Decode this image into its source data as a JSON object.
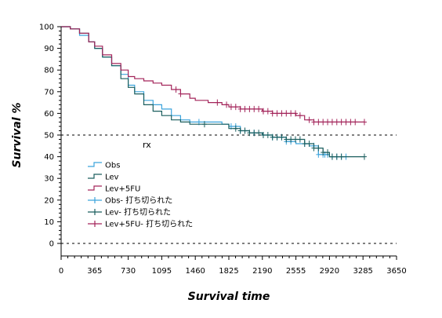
{
  "chart_data": {
    "type": "line",
    "xlabel": "Survival time",
    "ylabel": "Survival %",
    "xlim": [
      0,
      3650
    ],
    "ylim": [
      0,
      100
    ],
    "x_ticks": [
      0,
      365,
      730,
      1095,
      1460,
      1825,
      2190,
      2555,
      2920,
      3285,
      3650
    ],
    "y_ticks": [
      0,
      10,
      20,
      30,
      40,
      50,
      60,
      70,
      80,
      90,
      100
    ],
    "reference_lines": [
      50,
      0
    ],
    "legend": {
      "title": "rx",
      "placement": "bottom-left",
      "entries": [
        "Obs",
        "Lev",
        "Lev+5FU",
        "Obs- 打ち切られた",
        "Lev- 打ち切られた",
        "Lev+5FU- 打ち切られた"
      ]
    },
    "series": [
      {
        "name": "Obs",
        "color": "#3ba3dc",
        "points": [
          [
            0,
            100
          ],
          [
            100,
            99
          ],
          [
            200,
            96
          ],
          [
            300,
            93
          ],
          [
            365,
            90
          ],
          [
            450,
            86
          ],
          [
            550,
            82
          ],
          [
            650,
            78
          ],
          [
            730,
            73
          ],
          [
            800,
            70
          ],
          [
            900,
            66
          ],
          [
            1000,
            64
          ],
          [
            1095,
            62
          ],
          [
            1200,
            59
          ],
          [
            1300,
            57
          ],
          [
            1400,
            56
          ],
          [
            1460,
            56
          ],
          [
            1550,
            56
          ],
          [
            1650,
            56
          ],
          [
            1750,
            55
          ],
          [
            1825,
            54
          ],
          [
            1950,
            52
          ],
          [
            2050,
            51
          ],
          [
            2190,
            50
          ],
          [
            2300,
            49
          ],
          [
            2450,
            47
          ],
          [
            2555,
            46
          ],
          [
            2700,
            45
          ],
          [
            2800,
            41
          ],
          [
            2920,
            40
          ],
          [
            3050,
            40
          ],
          [
            3100,
            40
          ]
        ],
        "censored": [
          1500,
          1850,
          1900,
          1950,
          2000,
          2100,
          2200,
          2300,
          2350,
          2400,
          2450,
          2500,
          2650,
          2750,
          2800,
          2850,
          2870,
          2900,
          2950,
          3000,
          3050,
          3100
        ]
      },
      {
        "name": "Lev",
        "color": "#1a5e5e",
        "points": [
          [
            0,
            100
          ],
          [
            100,
            99
          ],
          [
            200,
            97
          ],
          [
            300,
            93
          ],
          [
            365,
            90
          ],
          [
            450,
            86
          ],
          [
            550,
            82
          ],
          [
            650,
            76
          ],
          [
            730,
            72
          ],
          [
            800,
            69
          ],
          [
            900,
            64
          ],
          [
            1000,
            61
          ],
          [
            1095,
            59
          ],
          [
            1200,
            57
          ],
          [
            1300,
            56
          ],
          [
            1400,
            55
          ],
          [
            1460,
            55
          ],
          [
            1550,
            55
          ],
          [
            1650,
            55
          ],
          [
            1750,
            55
          ],
          [
            1825,
            53
          ],
          [
            1950,
            52
          ],
          [
            2050,
            51
          ],
          [
            2190,
            50
          ],
          [
            2300,
            49
          ],
          [
            2450,
            48
          ],
          [
            2555,
            48
          ],
          [
            2650,
            46
          ],
          [
            2750,
            44
          ],
          [
            2850,
            42
          ],
          [
            2920,
            40
          ],
          [
            3100,
            40
          ],
          [
            3300,
            40
          ]
        ],
        "censored": [
          1560,
          1900,
          1950,
          2000,
          2050,
          2100,
          2150,
          2200,
          2250,
          2300,
          2350,
          2400,
          2450,
          2500,
          2550,
          2600,
          2650,
          2700,
          2750,
          2800,
          2850,
          2900,
          2950,
          3000,
          3050,
          3300
        ]
      },
      {
        "name": "Lev+5FU",
        "color": "#a3245a",
        "points": [
          [
            0,
            100
          ],
          [
            100,
            99
          ],
          [
            200,
            97
          ],
          [
            300,
            93
          ],
          [
            365,
            91
          ],
          [
            450,
            87
          ],
          [
            550,
            83
          ],
          [
            650,
            80
          ],
          [
            730,
            77
          ],
          [
            800,
            76
          ],
          [
            900,
            75
          ],
          [
            1000,
            74
          ],
          [
            1095,
            73
          ],
          [
            1200,
            71
          ],
          [
            1300,
            69
          ],
          [
            1400,
            67
          ],
          [
            1460,
            66
          ],
          [
            1600,
            65
          ],
          [
            1750,
            64
          ],
          [
            1825,
            63
          ],
          [
            1950,
            62
          ],
          [
            2050,
            62
          ],
          [
            2190,
            61
          ],
          [
            2300,
            60
          ],
          [
            2400,
            60
          ],
          [
            2555,
            59
          ],
          [
            2650,
            57
          ],
          [
            2750,
            56
          ],
          [
            2920,
            56
          ],
          [
            3050,
            56
          ],
          [
            3300,
            56
          ]
        ],
        "censored": [
          1250,
          1300,
          1700,
          1800,
          1850,
          1900,
          1950,
          2000,
          2050,
          2100,
          2150,
          2200,
          2250,
          2300,
          2350,
          2400,
          2450,
          2500,
          2550,
          2600,
          2700,
          2750,
          2800,
          2850,
          2900,
          2950,
          3000,
          3050,
          3100,
          3150,
          3200,
          3300
        ]
      }
    ]
  }
}
